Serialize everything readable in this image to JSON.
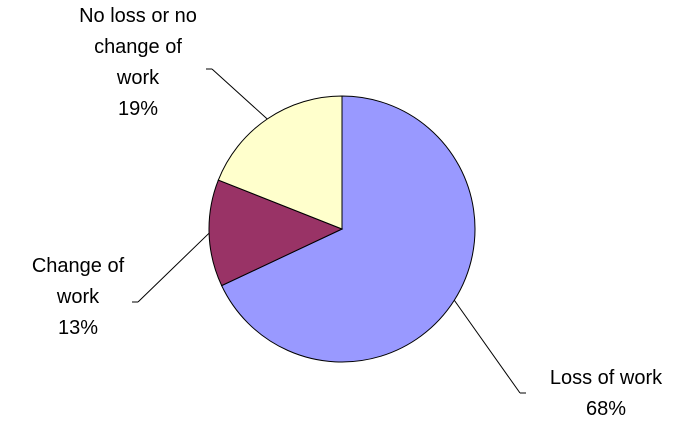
{
  "chart_data": {
    "type": "pie",
    "start_angle_deg": 0,
    "direction": "clockwise",
    "slices": [
      {
        "label_lines": [
          "Loss of work",
          "68%"
        ],
        "value": 68,
        "color": "#9999FF"
      },
      {
        "label_lines": [
          "Change of",
          "work",
          "13%"
        ],
        "value": 13,
        "color": "#993366"
      },
      {
        "label_lines": [
          "No loss or no",
          "change of",
          "work",
          "19%"
        ],
        "value": 19,
        "color": "#FFFFCC"
      }
    ]
  }
}
